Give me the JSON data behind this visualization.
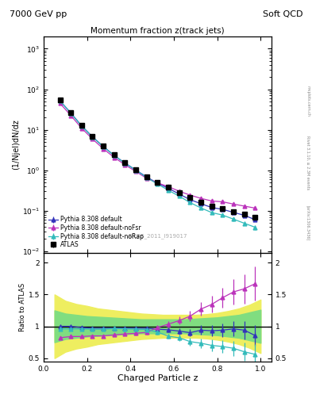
{
  "title_top_left": "7000 GeV pp",
  "title_top_right": "Soft QCD",
  "plot_title": "Momentum fraction z(track jets)",
  "xlabel": "Charged Particle z",
  "ylabel_main": "(1/Njel)dN/dz",
  "ylabel_ratio": "Ratio to ATLAS",
  "right_label_top": "mcplots.cern.ch",
  "right_label_mid": "Rivet 3.1.10, ≥ 2.3M events",
  "right_label_bot": "[arXiv:1306.3436]",
  "watermark": "ATLAS_2011_I919017",
  "xlim": [
    0.0,
    1.05
  ],
  "ylim_main": [
    0.009,
    2000
  ],
  "ylim_ratio": [
    0.45,
    2.15
  ],
  "z_data": [
    0.075,
    0.125,
    0.175,
    0.225,
    0.275,
    0.325,
    0.375,
    0.425,
    0.475,
    0.525,
    0.575,
    0.625,
    0.675,
    0.725,
    0.775,
    0.825,
    0.875,
    0.925,
    0.975
  ],
  "atlas_y": [
    55,
    27,
    13,
    7.0,
    4.0,
    2.4,
    1.55,
    1.05,
    0.7,
    0.5,
    0.38,
    0.28,
    0.21,
    0.16,
    0.13,
    0.115,
    0.095,
    0.082,
    0.07
  ],
  "atlas_yerr": [
    3,
    1.5,
    0.8,
    0.4,
    0.25,
    0.15,
    0.1,
    0.07,
    0.045,
    0.032,
    0.025,
    0.018,
    0.014,
    0.011,
    0.009,
    0.008,
    0.007,
    0.006,
    0.006
  ],
  "py_default_y": [
    52,
    26,
    12.5,
    6.7,
    3.85,
    2.32,
    1.5,
    1.01,
    0.68,
    0.476,
    0.357,
    0.258,
    0.188,
    0.149,
    0.12,
    0.108,
    0.091,
    0.077,
    0.06
  ],
  "py_noFsr_y": [
    45,
    22.5,
    10.9,
    5.9,
    3.38,
    2.07,
    1.36,
    0.93,
    0.63,
    0.487,
    0.392,
    0.303,
    0.243,
    0.202,
    0.174,
    0.166,
    0.146,
    0.13,
    0.116
  ],
  "py_noRap_y": [
    52,
    25.5,
    12.3,
    6.6,
    3.8,
    2.3,
    1.48,
    1.0,
    0.66,
    0.453,
    0.32,
    0.228,
    0.159,
    0.117,
    0.09,
    0.078,
    0.062,
    0.049,
    0.039
  ],
  "py_default_yerr": [
    1,
    0.5,
    0.3,
    0.18,
    0.11,
    0.07,
    0.045,
    0.03,
    0.022,
    0.018,
    0.014,
    0.011,
    0.009,
    0.008,
    0.007,
    0.007,
    0.006,
    0.006,
    0.005
  ],
  "py_noFsr_yerr": [
    1,
    0.5,
    0.3,
    0.18,
    0.11,
    0.07,
    0.045,
    0.03,
    0.022,
    0.018,
    0.014,
    0.011,
    0.009,
    0.008,
    0.007,
    0.007,
    0.006,
    0.006,
    0.006
  ],
  "py_noRap_yerr": [
    1,
    0.5,
    0.3,
    0.18,
    0.11,
    0.07,
    0.045,
    0.03,
    0.022,
    0.018,
    0.014,
    0.011,
    0.009,
    0.008,
    0.007,
    0.007,
    0.006,
    0.006,
    0.005
  ],
  "color_atlas": "#000000",
  "color_default": "#3333bb",
  "color_noFsr": "#bb33bb",
  "color_noRap": "#33bbbb",
  "color_green": "#80dd80",
  "color_yellow": "#eeee60",
  "ratio_default": [
    1.0,
    1.0,
    0.98,
    0.97,
    0.97,
    0.97,
    0.97,
    0.97,
    0.97,
    0.955,
    0.945,
    0.925,
    0.9,
    0.94,
    0.93,
    0.94,
    0.96,
    0.94,
    0.855
  ],
  "ratio_noFsr": [
    0.82,
    0.84,
    0.84,
    0.85,
    0.85,
    0.865,
    0.88,
    0.89,
    0.905,
    0.98,
    1.035,
    1.09,
    1.16,
    1.27,
    1.345,
    1.45,
    1.54,
    1.59,
    1.67
  ],
  "ratio_noRap": [
    0.96,
    0.96,
    0.96,
    0.955,
    0.955,
    0.965,
    0.96,
    0.955,
    0.95,
    0.91,
    0.845,
    0.82,
    0.76,
    0.735,
    0.7,
    0.683,
    0.655,
    0.6,
    0.56
  ],
  "ratio_default_yerr": [
    0.03,
    0.025,
    0.022,
    0.022,
    0.022,
    0.022,
    0.022,
    0.025,
    0.028,
    0.035,
    0.04,
    0.05,
    0.06,
    0.075,
    0.09,
    0.105,
    0.12,
    0.14,
    0.16
  ],
  "ratio_noFsr_yerr": [
    0.03,
    0.025,
    0.022,
    0.022,
    0.022,
    0.022,
    0.022,
    0.028,
    0.033,
    0.04,
    0.05,
    0.065,
    0.082,
    0.105,
    0.13,
    0.16,
    0.195,
    0.23,
    0.27
  ],
  "ratio_noRap_yerr": [
    0.03,
    0.025,
    0.022,
    0.022,
    0.022,
    0.022,
    0.022,
    0.025,
    0.028,
    0.035,
    0.04,
    0.05,
    0.06,
    0.075,
    0.09,
    0.105,
    0.12,
    0.14,
    0.16
  ],
  "band_x": [
    0.05,
    0.1,
    0.15,
    0.2,
    0.25,
    0.3,
    0.35,
    0.4,
    0.45,
    0.5,
    0.55,
    0.6,
    0.65,
    0.7,
    0.75,
    0.8,
    0.85,
    0.9,
    0.95,
    1.0
  ],
  "band_yellow_lo": [
    0.5,
    0.6,
    0.65,
    0.68,
    0.72,
    0.74,
    0.76,
    0.78,
    0.8,
    0.81,
    0.82,
    0.82,
    0.82,
    0.82,
    0.81,
    0.79,
    0.76,
    0.72,
    0.66,
    0.58
  ],
  "band_yellow_hi": [
    1.5,
    1.4,
    1.35,
    1.32,
    1.28,
    1.26,
    1.24,
    1.22,
    1.2,
    1.19,
    1.18,
    1.18,
    1.18,
    1.18,
    1.19,
    1.21,
    1.24,
    1.28,
    1.34,
    1.42
  ],
  "band_green_lo": [
    0.75,
    0.8,
    0.82,
    0.84,
    0.85,
    0.86,
    0.87,
    0.88,
    0.89,
    0.89,
    0.89,
    0.89,
    0.89,
    0.88,
    0.87,
    0.86,
    0.84,
    0.82,
    0.78,
    0.74
  ],
  "band_green_hi": [
    1.25,
    1.2,
    1.18,
    1.16,
    1.15,
    1.14,
    1.13,
    1.12,
    1.11,
    1.11,
    1.11,
    1.11,
    1.11,
    1.12,
    1.13,
    1.14,
    1.16,
    1.18,
    1.22,
    1.26
  ]
}
